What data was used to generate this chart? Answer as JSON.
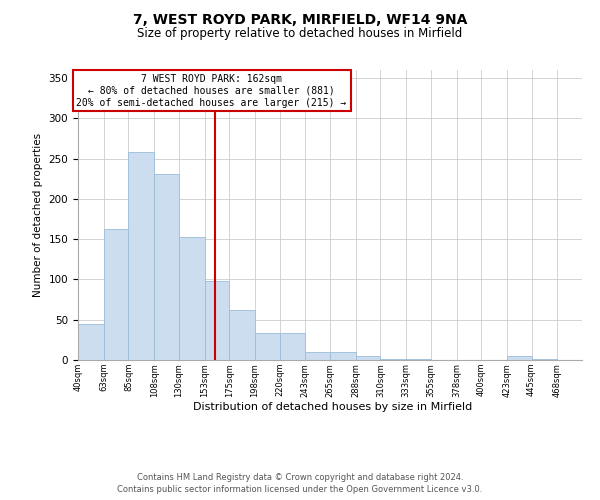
{
  "title": "7, WEST ROYD PARK, MIRFIELD, WF14 9NA",
  "subtitle": "Size of property relative to detached houses in Mirfield",
  "xlabel": "Distribution of detached houses by size in Mirfield",
  "ylabel": "Number of detached properties",
  "bar_color": "#cdddf0",
  "bar_edge_color": "#9bbdd8",
  "annotation_box_color": "#ffffff",
  "annotation_box_edge": "#cc0000",
  "vline_color": "#cc0000",
  "vline_x": 162,
  "annotation_title": "7 WEST ROYD PARK: 162sqm",
  "annotation_line1": "← 80% of detached houses are smaller (881)",
  "annotation_line2": "20% of semi-detached houses are larger (215) →",
  "footer_line1": "Contains HM Land Registry data © Crown copyright and database right 2024.",
  "footer_line2": "Contains public sector information licensed under the Open Government Licence v3.0.",
  "bins": [
    40,
    63,
    85,
    108,
    130,
    153,
    175,
    198,
    220,
    243,
    265,
    288,
    310,
    333,
    355,
    378,
    400,
    423,
    445,
    468,
    490
  ],
  "counts": [
    45,
    163,
    258,
    231,
    153,
    98,
    62,
    34,
    33,
    10,
    10,
    5,
    1,
    1,
    0,
    0,
    0,
    5,
    1,
    0,
    1
  ],
  "ylim": [
    0,
    360
  ],
  "yticks": [
    0,
    50,
    100,
    150,
    200,
    250,
    300,
    350
  ]
}
